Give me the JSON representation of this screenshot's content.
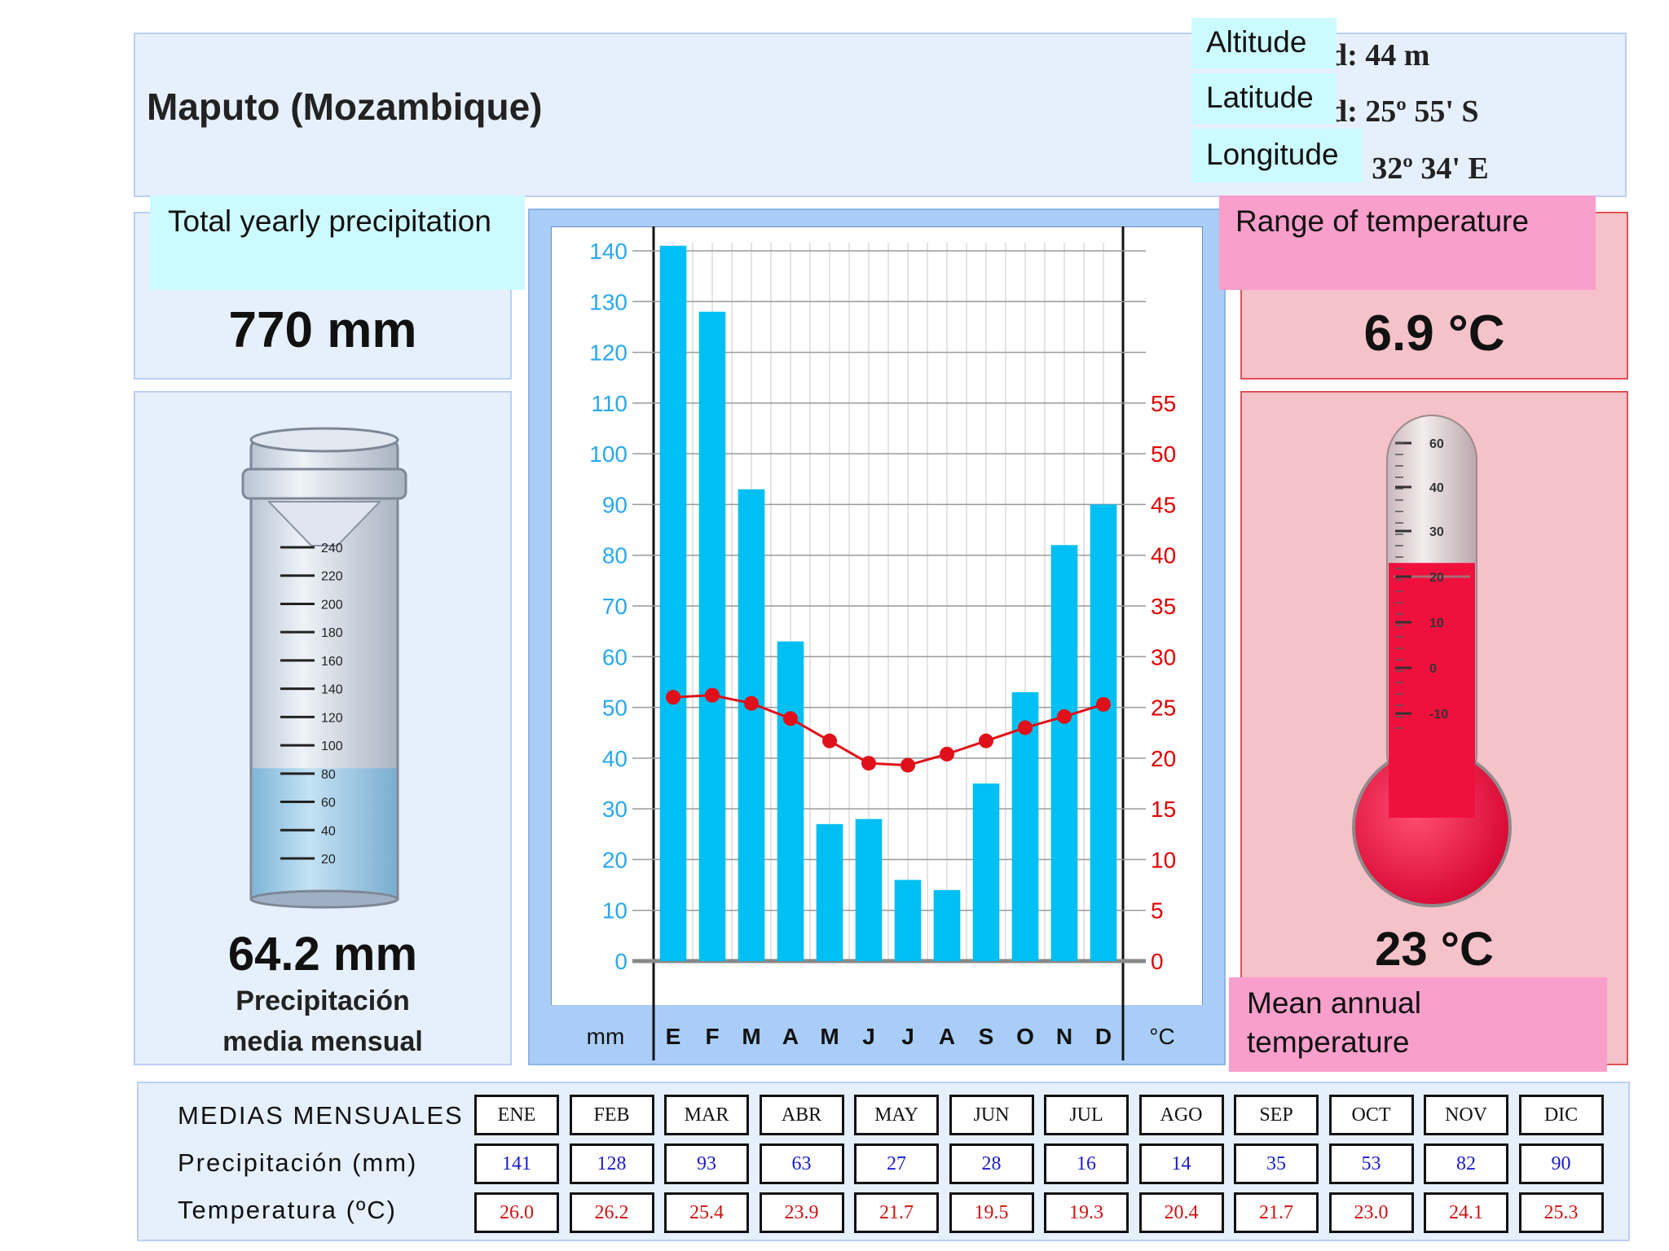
{
  "station": {
    "title": "Maputo (Mozambique)",
    "labels": {
      "altitude": "Altitude",
      "latitude": "Latitude",
      "longitude": "Longitude"
    },
    "values": {
      "altitude": "d: 44 m",
      "latitude": "d: 25º 55' S",
      "longitude": "d:  32º 34' E"
    }
  },
  "precipitation_panel": {
    "label": "Total yearly precipitation",
    "total": "770 mm",
    "monthly_mean": "64.2 mm",
    "monthly_mean_caption_line1": "Precipitación",
    "monthly_mean_caption_line2": "media mensual",
    "gauge_ticks": [
      "240",
      "220",
      "200",
      "180",
      "160",
      "140",
      "120",
      "100",
      "80",
      "60",
      "40",
      "20"
    ],
    "gauge_level_mm": 64.2
  },
  "temperature_panel": {
    "range_label": "Range of temperature",
    "range_value": "6.9 °C",
    "mean_label": "Mean annual temperature",
    "mean_value": "23 °C",
    "thermo_ticks": [
      "60",
      "40",
      "30",
      "20",
      "10",
      "0",
      "-10"
    ],
    "thermo_level_c": 23
  },
  "chart_data": {
    "type": "bar",
    "categories": [
      "E",
      "F",
      "M",
      "A",
      "M",
      "J",
      "J",
      "A",
      "S",
      "O",
      "N",
      "D"
    ],
    "series": [
      {
        "kind": "bar",
        "axis": "left",
        "color": "#00bff2",
        "values": [
          141,
          128,
          93,
          63,
          27,
          28,
          16,
          14,
          35,
          53,
          82,
          90
        ]
      },
      {
        "kind": "line",
        "axis": "right",
        "color": "#e0101a",
        "values": [
          26.0,
          26.2,
          25.4,
          23.9,
          21.7,
          19.5,
          19.3,
          20.4,
          21.7,
          23.0,
          24.1,
          25.3
        ]
      }
    ],
    "xlabel_left": "mm",
    "xlabel_right": "°C",
    "ylim_left": [
      0,
      140
    ],
    "yticks_left": [
      0,
      10,
      20,
      30,
      40,
      50,
      60,
      70,
      80,
      90,
      100,
      110,
      120,
      130,
      140
    ],
    "ylim_right": [
      0,
      70
    ],
    "yticks_right": [
      0,
      5,
      10,
      15,
      20,
      25,
      30,
      35,
      40,
      45,
      50,
      55
    ],
    "grid": true,
    "left_axis_color": "#29a8f0",
    "right_axis_color": "#e00000"
  },
  "table": {
    "row_label_months": "MEDIAS MENSUALES",
    "row_label_precip": "Precipitación (mm)",
    "row_label_temp": "Temperatura (ºC)",
    "months": [
      "ENE",
      "FEB",
      "MAR",
      "ABR",
      "MAY",
      "JUN",
      "JUL",
      "AGO",
      "SEP",
      "OCT",
      "NOV",
      "DIC"
    ],
    "precip": [
      "141",
      "128",
      "93",
      "63",
      "27",
      "28",
      "16",
      "14",
      "35",
      "53",
      "82",
      "90"
    ],
    "temp": [
      "26.0",
      "26.2",
      "25.4",
      "23.9",
      "21.7",
      "19.5",
      "19.3",
      "20.4",
      "21.7",
      "23.0",
      "24.1",
      "25.3"
    ]
  }
}
